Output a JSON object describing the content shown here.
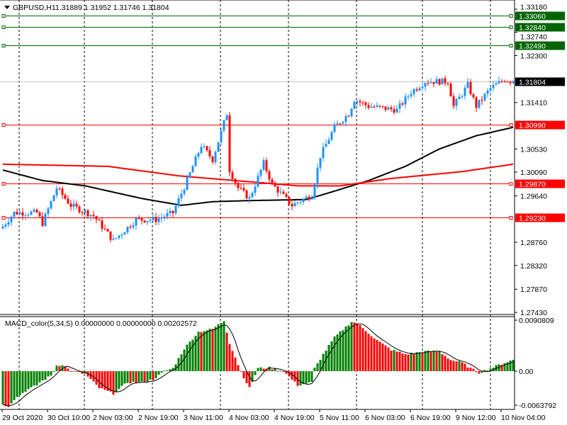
{
  "header": {
    "menu_icon": "triangle-down-icon",
    "symbol": "GBPUSD,H1",
    "ohlc": "1.31889 1.31952 1.31746 1.31804"
  },
  "price_axis": {
    "ticks": [
      "1.33180",
      "1.32740",
      "1.32300",
      "1.31410",
      "1.30530",
      "1.30090",
      "1.29640",
      "1.28760",
      "1.28320",
      "1.27870",
      "1.27430"
    ],
    "tick_values": [
      1.3318,
      1.3274,
      1.323,
      1.3141,
      1.3053,
      1.3009,
      1.2964,
      1.2876,
      1.2832,
      1.2787,
      1.2743
    ]
  },
  "levels": [
    {
      "label": "1.33060",
      "value": 1.3306,
      "color": "#006400"
    },
    {
      "label": "1.32840",
      "value": 1.3284,
      "color": "#006400"
    },
    {
      "label": "1.32490",
      "value": 1.3249,
      "color": "#006400"
    },
    {
      "label": "1.30990",
      "value": 1.3099,
      "color": "#ff0000"
    },
    {
      "label": "1.29870",
      "value": 1.2987,
      "color": "#ff0000"
    },
    {
      "label": "1.29230",
      "value": 1.2923,
      "color": "#ff0000"
    }
  ],
  "current_price": {
    "label": "1.31804",
    "value": 1.31804,
    "color": "#000000"
  },
  "macd": {
    "title": "MACD_color(5,34,5) 0.00000000 0.00000000 0.00202572",
    "axis_top": "0.0090809",
    "axis_zero": "0.00",
    "axis_bottom": "-0.0063792",
    "top_value": 0.0090809,
    "bottom_value": -0.0063792,
    "up_color": "#008000",
    "down_color": "#ff0000"
  },
  "time_axis": [
    "29 Oct 2020",
    "30 Oct 10:00",
    "2 Nov 03:00",
    "2 Nov 19:00",
    "3 Nov 11:00",
    "4 Nov 03:00",
    "4 Nov 19:00",
    "5 Nov 11:00",
    "6 Nov 03:00",
    "6 Nov 19:00",
    "9 Nov 12:00",
    "10 Nov 04:00"
  ],
  "chart_data": {
    "type": "candlestick",
    "symbol": "GBPUSD",
    "timeframe": "H1",
    "bar_count": 181,
    "ylim": [
      1.2743,
      1.3318
    ],
    "bull_color": "#1e90ff",
    "bear_color": "#ff0000",
    "close_keypoints": [
      [
        0,
        1.2906
      ],
      [
        4,
        1.2932
      ],
      [
        12,
        1.2932
      ],
      [
        14,
        1.2912
      ],
      [
        19,
        1.2979
      ],
      [
        24,
        1.2946
      ],
      [
        32,
        1.2926
      ],
      [
        39,
        1.2879
      ],
      [
        47,
        1.2919
      ],
      [
        54,
        1.2919
      ],
      [
        60,
        1.2932
      ],
      [
        65,
        1.2993
      ],
      [
        70,
        1.306
      ],
      [
        74,
        1.3033
      ],
      [
        79,
        1.312
      ],
      [
        80,
        1.3013
      ],
      [
        83,
        1.2979
      ],
      [
        87,
        1.2959
      ],
      [
        92,
        1.3026
      ],
      [
        95,
        1.2986
      ],
      [
        102,
        1.2946
      ],
      [
        109,
        1.2966
      ],
      [
        112,
        1.304
      ],
      [
        117,
        1.3094
      ],
      [
        122,
        1.312
      ],
      [
        124,
        1.3147
      ],
      [
        129,
        1.3134
      ],
      [
        139,
        1.3127
      ],
      [
        144,
        1.3161
      ],
      [
        149,
        1.3181
      ],
      [
        157,
        1.3181
      ],
      [
        159,
        1.3134
      ],
      [
        164,
        1.3174
      ],
      [
        167,
        1.3134
      ],
      [
        172,
        1.3168
      ],
      [
        177,
        1.3185
      ],
      [
        180,
        1.318
      ]
    ],
    "ma_black_keypoints": [
      [
        0,
        1.3013
      ],
      [
        14,
        1.2993
      ],
      [
        29,
        1.2983
      ],
      [
        49,
        1.2959
      ],
      [
        63,
        1.2946
      ],
      [
        74,
        1.2953
      ],
      [
        87,
        1.2955
      ],
      [
        107,
        1.2957
      ],
      [
        117,
        1.2973
      ],
      [
        129,
        1.2993
      ],
      [
        142,
        1.302
      ],
      [
        154,
        1.3053
      ],
      [
        167,
        1.3078
      ],
      [
        180,
        1.3094
      ]
    ],
    "ma_red_keypoints": [
      [
        0,
        1.3024
      ],
      [
        37,
        1.302
      ],
      [
        62,
        1.3002
      ],
      [
        82,
        1.2993
      ],
      [
        104,
        1.2983
      ],
      [
        119,
        1.2983
      ],
      [
        137,
        1.2997
      ],
      [
        162,
        1.301
      ],
      [
        180,
        1.3024
      ]
    ],
    "macd_hist_keypoints": [
      [
        0,
        -0.006
      ],
      [
        2,
        -0.0062
      ],
      [
        4,
        -0.005
      ],
      [
        8,
        -0.0035
      ],
      [
        12,
        -0.0025
      ],
      [
        13,
        -0.002
      ],
      [
        17,
        -0.0008
      ],
      [
        19,
        0.001
      ],
      [
        21,
        0.0012
      ],
      [
        24,
        0
      ],
      [
        29,
        -0.0005
      ],
      [
        34,
        -0.003
      ],
      [
        39,
        -0.004
      ],
      [
        44,
        -0.002
      ],
      [
        49,
        -0.002
      ],
      [
        53,
        -0.0015
      ],
      [
        57,
        0
      ],
      [
        60,
        0.0005
      ],
      [
        64,
        0.004
      ],
      [
        69,
        0.007
      ],
      [
        74,
        0.0075
      ],
      [
        78,
        0.009
      ],
      [
        80,
        0.005
      ],
      [
        84,
        -0.0001
      ],
      [
        87,
        -0.003
      ],
      [
        90,
        0.0005
      ],
      [
        94,
        0.0006
      ],
      [
        99,
        0
      ],
      [
        104,
        -0.0025
      ],
      [
        109,
        -0.002
      ],
      [
        110,
        0.0005
      ],
      [
        113,
        0.003
      ],
      [
        117,
        0.006
      ],
      [
        123,
        0.0088
      ],
      [
        125,
        0.0085
      ],
      [
        132,
        0.0055
      ],
      [
        137,
        0.0038
      ],
      [
        142,
        0.003
      ],
      [
        149,
        0.0035
      ],
      [
        154,
        0.0035
      ],
      [
        158,
        0.002
      ],
      [
        162,
        0.0015
      ],
      [
        165,
        0.0005
      ],
      [
        168,
        -0.0003
      ],
      [
        172,
        0.0005
      ],
      [
        177,
        0.0015
      ],
      [
        180,
        0.002
      ]
    ],
    "macd_signal_period": 5
  }
}
